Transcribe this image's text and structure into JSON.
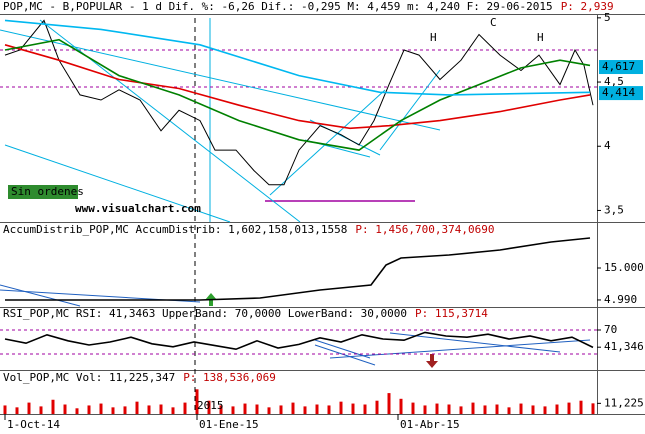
{
  "chart_data": [
    {
      "type": "line",
      "title": "POP,MC - B,POPULAR - 1 d Dif. %: -6,26 Dif.: -0,295 M: 4,459 m: 4,240 F: 29-06-2015",
      "subtitle": "P: 2,939",
      "xlim": [
        0,
        197
      ],
      "xticks": [
        {
          "value": 0,
          "label": "1-Oct-14"
        },
        {
          "value": 64,
          "label": "01-Ene-15"
        },
        {
          "value": 131,
          "label": "01-Abr-15"
        }
      ],
      "ylim": [
        3.41,
        5.03
      ],
      "yticks": [
        {
          "value": 5,
          "label": "5"
        },
        {
          "value": 4.5,
          "label": "4,5"
        },
        4,
        {
          "value": 3.5,
          "label": "3,5"
        }
      ],
      "price_tags": [
        {
          "value": 4.617,
          "label": "4,617",
          "color": "#00b0e0"
        },
        {
          "value": 4.414,
          "label": "4,414",
          "color": "#00b0e0"
        }
      ],
      "annotations": [
        "H",
        "C",
        "H",
        "Sin ordenes",
        "www.visualchart.com"
      ],
      "series": [
        {
          "color": "#000000",
          "x": [
            0,
            5,
            13,
            18,
            25,
            32,
            38,
            45,
            52,
            58,
            65,
            70,
            77,
            83,
            88,
            93,
            98,
            105,
            112,
            118,
            123,
            128,
            133,
            138,
            145,
            152,
            158,
            165,
            172,
            178,
            185,
            190,
            193,
            196
          ],
          "values": [
            4.71,
            4.75,
            4.98,
            4.67,
            4.4,
            4.36,
            4.44,
            4.36,
            4.12,
            4.28,
            4.2,
            3.97,
            3.97,
            3.81,
            3.7,
            3.7,
            3.97,
            4.16,
            4.09,
            4.01,
            4.2,
            4.48,
            4.75,
            4.71,
            4.52,
            4.67,
            4.87,
            4.71,
            4.59,
            4.71,
            4.48,
            4.75,
            4.63,
            4.32
          ]
        },
        {
          "color": "#e00000",
          "x": [
            0,
            18,
            38,
            58,
            78,
            98,
            115,
            128,
            145,
            165,
            185,
            195
          ],
          "values": [
            4.79,
            4.67,
            4.52,
            4.45,
            4.32,
            4.2,
            4.14,
            4.16,
            4.2,
            4.27,
            4.36,
            4.4
          ]
        },
        {
          "color": "#008000",
          "x": [
            0,
            18,
            38,
            58,
            78,
            98,
            118,
            132,
            145,
            158,
            172,
            185,
            195
          ],
          "values": [
            4.75,
            4.83,
            4.55,
            4.4,
            4.2,
            4.05,
            3.97,
            4.2,
            4.36,
            4.48,
            4.61,
            4.67,
            4.63
          ]
        },
        {
          "color": "#00b8f0",
          "x": [
            0,
            32,
            65,
            98,
            125,
            148,
            195
          ],
          "values": [
            4.98,
            4.91,
            4.79,
            4.55,
            4.42,
            4.4,
            4.42
          ]
        }
      ]
    },
    {
      "type": "line",
      "title": "AccumDistrib_POP,MC AccumDistrib: 1,602,158,013,1558",
      "subtitle": "P: 1,456,700,374,0690",
      "ylim": [
        3100,
        27520
      ],
      "yticks": [
        {
          "value": 15000,
          "label": "15.000"
        },
        {
          "value": 4990,
          "label": "4.990"
        }
      ],
      "series": [
        {
          "color": "#000000",
          "x": [
            0,
            65,
            85,
            105,
            122,
            127,
            132,
            148,
            165,
            182,
            195
          ],
          "values": [
            4990,
            4990,
            5600,
            8110,
            9680,
            15940,
            18130,
            19070,
            20630,
            23140,
            24390
          ]
        }
      ]
    },
    {
      "type": "line",
      "title": "RSI_POP,MC RSI: 41,3463 UpperBand: 70,0000 LowerBand: 30,0000",
      "subtitle": "P: 115,3714",
      "ylim": [
        0,
        100
      ],
      "bands": [
        70,
        30
      ],
      "yticks": [
        70,
        {
          "value": 41.346,
          "label": "41,346"
        }
      ],
      "series": [
        {
          "color": "#000000",
          "x": [
            0,
            7,
            14,
            21,
            28,
            35,
            42,
            49,
            56,
            63,
            70,
            77,
            84,
            91,
            98,
            105,
            112,
            119,
            126,
            133,
            140,
            147,
            154,
            161,
            168,
            175,
            182,
            189,
            196
          ],
          "values": [
            55,
            48,
            62,
            52,
            45,
            50,
            58,
            47,
            42,
            50,
            44,
            38,
            52,
            40,
            46,
            57,
            50,
            62,
            55,
            53,
            66,
            60,
            58,
            63,
            55,
            60,
            52,
            58,
            41
          ]
        }
      ]
    },
    {
      "type": "bar",
      "title": "Vol_POP,MC Vol: 11,225,347",
      "subtitle": "P: 138,536,069",
      "annotations": [
        "2015"
      ],
      "ylim": [
        0,
        40000
      ],
      "yticks": [
        {
          "value": 11225,
          "label": "11,225"
        }
      ],
      "color": "#e00000",
      "x": [
        0,
        4,
        8,
        12,
        16,
        20,
        24,
        28,
        32,
        36,
        40,
        44,
        48,
        52,
        56,
        60,
        64,
        68,
        72,
        76,
        80,
        84,
        88,
        92,
        96,
        100,
        104,
        108,
        112,
        116,
        120,
        124,
        128,
        132,
        136,
        140,
        144,
        148,
        152,
        156,
        160,
        164,
        168,
        172,
        176,
        180,
        184,
        188,
        192,
        196
      ],
      "values": [
        9000,
        7000,
        12000,
        8000,
        15000,
        10000,
        6000,
        9000,
        11000,
        7000,
        8000,
        13000,
        9000,
        10000,
        7000,
        12000,
        26000,
        14000,
        9000,
        8000,
        11000,
        10000,
        7000,
        9000,
        12000,
        8000,
        10000,
        9000,
        13000,
        11000,
        10000,
        14000,
        22000,
        16000,
        12000,
        9000,
        11000,
        10000,
        8000,
        12000,
        9000,
        10000,
        7000,
        11000,
        9000,
        8000,
        10000,
        12000,
        14000,
        11225
      ]
    }
  ]
}
